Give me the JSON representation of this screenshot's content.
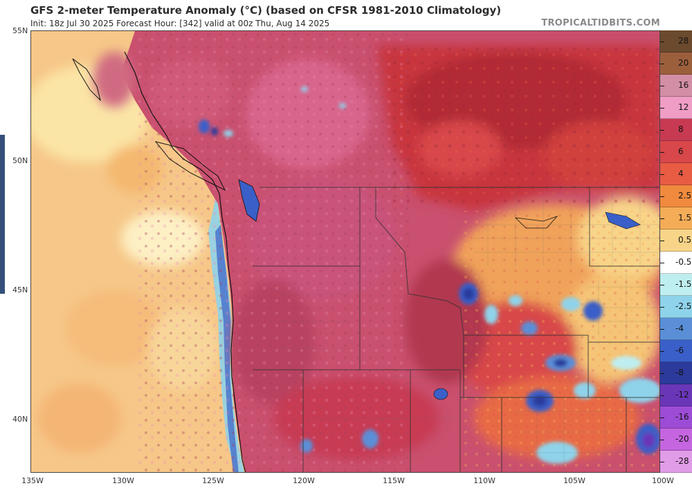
{
  "header": {
    "title": "GFS 2-meter Temperature Anomaly (°C) (based on CFSR 1981-2010 Climatology)",
    "subtitle": "Init: 18z Jul 30 2025   Forecast Hour: [342]   valid at 00z Thu, Aug 14 2025",
    "brand": "TROPICALTIDBITS.COM"
  },
  "map": {
    "lat_labels": [
      "55N",
      "50N",
      "45N",
      "40N"
    ],
    "lon_labels": [
      "135W",
      "130W",
      "125W",
      "120W",
      "115W",
      "110W",
      "105W",
      "100W"
    ]
  },
  "colorbar": {
    "labels": [
      "28",
      "20",
      "16",
      "12",
      "8",
      "6",
      "4",
      "2.5",
      "1.5",
      "0.5",
      "-0.5",
      "-1.5",
      "-2.5",
      "-4",
      "-6",
      "-8",
      "-12",
      "-16",
      "-20",
      "-28"
    ],
    "colors": [
      "#6b4a2e",
      "#9c5f3c",
      "#d28ea4",
      "#ef9dc4",
      "#c73a52",
      "#d8474a",
      "#e85c44",
      "#f08a3e",
      "#f5ac57",
      "#f8d488",
      "#ffffff",
      "#bfeef0",
      "#8fd3ea",
      "#5a8fd8",
      "#3a5fc8",
      "#2c3a9c",
      "#6a36b8",
      "#9c4cd6",
      "#c565e0",
      "#e19ce8"
    ]
  }
}
